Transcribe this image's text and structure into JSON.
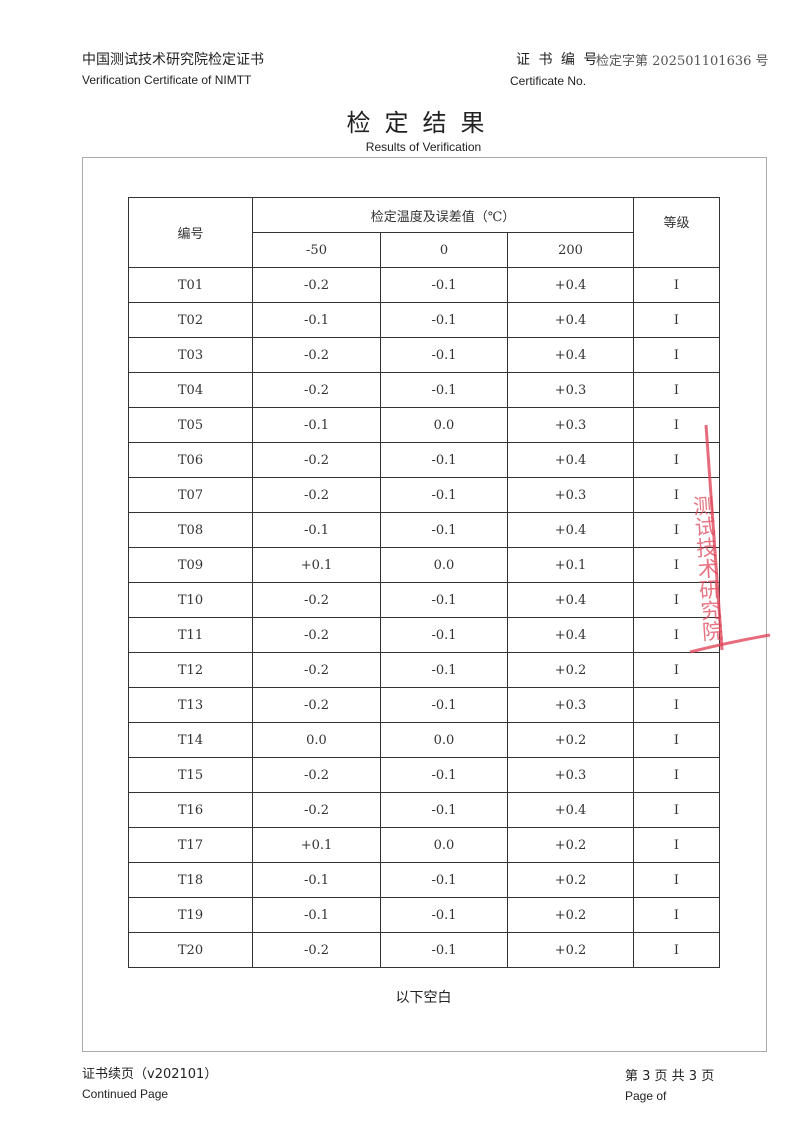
{
  "header": {
    "org_cn": "中国测试技术研究院检定证书",
    "org_en": "Verification Certificate of NIMTT",
    "cert_no_label_cn": "证 书 编 号",
    "cert_no_value": "检定字第 202501101636 号",
    "cert_no_label_en": "Certificate No."
  },
  "title": {
    "cn": "检定结果",
    "en": "Results of Verification"
  },
  "table": {
    "col_id": "编号",
    "col_group": "检定温度及误差值（℃）",
    "temps": [
      "-50",
      "0",
      "200"
    ],
    "col_grade": "等级",
    "rows": [
      [
        "T01",
        "-0.2",
        "-0.1",
        "+0.4",
        "I"
      ],
      [
        "T02",
        "-0.1",
        "-0.1",
        "+0.4",
        "I"
      ],
      [
        "T03",
        "-0.2",
        "-0.1",
        "+0.4",
        "I"
      ],
      [
        "T04",
        "-0.2",
        "-0.1",
        "+0.3",
        "I"
      ],
      [
        "T05",
        "-0.1",
        "0.0",
        "+0.3",
        "I"
      ],
      [
        "T06",
        "-0.2",
        "-0.1",
        "+0.4",
        "I"
      ],
      [
        "T07",
        "-0.2",
        "-0.1",
        "+0.3",
        "I"
      ],
      [
        "T08",
        "-0.1",
        "-0.1",
        "+0.4",
        "I"
      ],
      [
        "T09",
        "+0.1",
        "0.0",
        "+0.1",
        "I"
      ],
      [
        "T10",
        "-0.2",
        "-0.1",
        "+0.4",
        "I"
      ],
      [
        "T11",
        "-0.2",
        "-0.1",
        "+0.4",
        "I"
      ],
      [
        "T12",
        "-0.2",
        "-0.1",
        "+0.2",
        "I"
      ],
      [
        "T13",
        "-0.2",
        "-0.1",
        "+0.3",
        "I"
      ],
      [
        "T14",
        "0.0",
        "0.0",
        "+0.2",
        "I"
      ],
      [
        "T15",
        "-0.2",
        "-0.1",
        "+0.3",
        "I"
      ],
      [
        "T16",
        "-0.2",
        "-0.1",
        "+0.4",
        "I"
      ],
      [
        "T17",
        "+0.1",
        "0.0",
        "+0.2",
        "I"
      ],
      [
        "T18",
        "-0.1",
        "-0.1",
        "+0.2",
        "I"
      ],
      [
        "T19",
        "-0.1",
        "-0.1",
        "+0.2",
        "I"
      ],
      [
        "T20",
        "-0.2",
        "-0.1",
        "+0.2",
        "I"
      ]
    ]
  },
  "blank_note": "以下空白",
  "footer": {
    "continued_cn": "证书续页（v202101）",
    "continued_en": "Continued Page",
    "page_cn": "第 3 页 共 3 页",
    "page_en": "Page of"
  },
  "stamp": {
    "text": "测试技术研究院",
    "color": "#e0475a"
  }
}
